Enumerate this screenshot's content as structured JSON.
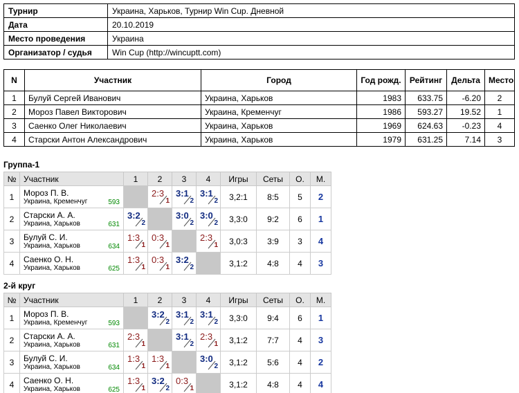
{
  "info": {
    "rows": [
      [
        "Турнир",
        "Украина, Харьков, Турнир Win Cup. Дневной"
      ],
      [
        "Дата",
        "20.10.2019"
      ],
      [
        "Место проведения",
        "Украина"
      ],
      [
        "Организатор / судья",
        "Win Cup (http://wincuptt.com)"
      ]
    ]
  },
  "participants": {
    "header": [
      "N",
      "Участник",
      "Город",
      "Год рожд.",
      "Рейтинг",
      "Дельта",
      "Место"
    ],
    "rows": [
      [
        "1",
        "Булуй Сергей Иванович",
        "Украина, Харьков",
        "1983",
        "633.75",
        "-6.20",
        "2"
      ],
      [
        "2",
        "Мороз Павел Викторович",
        "Украина, Кременчуг",
        "1986",
        "593.27",
        "19.52",
        "1"
      ],
      [
        "3",
        "Саенко Олег Николаевич",
        "Украина, Харьков",
        "1969",
        "624.63",
        "-0.23",
        "4"
      ],
      [
        "4",
        "Старски Антон Александрович",
        "Украина, Харьков",
        "1979",
        "631.25",
        "7.14",
        "3"
      ]
    ]
  },
  "groups": [
    {
      "title": "Группа-1",
      "header": [
        "№",
        "Участник",
        "1",
        "2",
        "3",
        "4",
        "Игры",
        "Сеты",
        "О.",
        "М."
      ],
      "rows": [
        {
          "n": "1",
          "name": "Мороз П. В.",
          "city": "Украина, Кременчуг",
          "rating": "593",
          "cells": [
            null,
            {
              "score": "2:3",
              "pts": "1"
            },
            {
              "score": "3:1",
              "pts": "2"
            },
            {
              "score": "3:1",
              "pts": "2"
            }
          ],
          "games": "3,2:1",
          "sets": "8:5",
          "points": "5",
          "place": "2"
        },
        {
          "n": "2",
          "name": "Старски А. А.",
          "city": "Украина, Харьков",
          "rating": "631",
          "cells": [
            {
              "score": "3:2",
              "pts": "2"
            },
            null,
            {
              "score": "3:0",
              "pts": "2"
            },
            {
              "score": "3:0",
              "pts": "2"
            }
          ],
          "games": "3,3:0",
          "sets": "9:2",
          "points": "6",
          "place": "1"
        },
        {
          "n": "3",
          "name": "Булуй С. И.",
          "city": "Украина, Харьков",
          "rating": "634",
          "cells": [
            {
              "score": "1:3",
              "pts": "1"
            },
            {
              "score": "0:3",
              "pts": "1"
            },
            null,
            {
              "score": "2:3",
              "pts": "1"
            }
          ],
          "games": "3,0:3",
          "sets": "3:9",
          "points": "3",
          "place": "4"
        },
        {
          "n": "4",
          "name": "Саенко О. Н.",
          "city": "Украина, Харьков",
          "rating": "625",
          "cells": [
            {
              "score": "1:3",
              "pts": "1"
            },
            {
              "score": "0:3",
              "pts": "1"
            },
            {
              "score": "3:2",
              "pts": "2"
            },
            null
          ],
          "games": "3,1:2",
          "sets": "4:8",
          "points": "4",
          "place": "3"
        }
      ]
    },
    {
      "title": "2-й круг",
      "header": [
        "№",
        "Участник",
        "1",
        "2",
        "3",
        "4",
        "Игры",
        "Сеты",
        "О.",
        "М."
      ],
      "rows": [
        {
          "n": "1",
          "name": "Мороз П. В.",
          "city": "Украина, Кременчуг",
          "rating": "593",
          "cells": [
            null,
            {
              "score": "3:2",
              "pts": "2"
            },
            {
              "score": "3:1",
              "pts": "2"
            },
            {
              "score": "3:1",
              "pts": "2"
            }
          ],
          "games": "3,3:0",
          "sets": "9:4",
          "points": "6",
          "place": "1"
        },
        {
          "n": "2",
          "name": "Старски А. А.",
          "city": "Украина, Харьков",
          "rating": "631",
          "cells": [
            {
              "score": "2:3",
              "pts": "1"
            },
            null,
            {
              "score": "3:1",
              "pts": "2"
            },
            {
              "score": "2:3",
              "pts": "1"
            }
          ],
          "games": "3,1:2",
          "sets": "7:7",
          "points": "4",
          "place": "3"
        },
        {
          "n": "3",
          "name": "Булуй С. И.",
          "city": "Украина, Харьков",
          "rating": "634",
          "cells": [
            {
              "score": "1:3",
              "pts": "1"
            },
            {
              "score": "1:3",
              "pts": "1"
            },
            null,
            {
              "score": "3:0",
              "pts": "2"
            }
          ],
          "games": "3,1:2",
          "sets": "5:6",
          "points": "4",
          "place": "2"
        },
        {
          "n": "4",
          "name": "Саенко О. Н.",
          "city": "Украина, Харьков",
          "rating": "625",
          "cells": [
            {
              "score": "1:3",
              "pts": "1"
            },
            {
              "score": "3:2",
              "pts": "2"
            },
            {
              "score": "0:3",
              "pts": "1"
            },
            null
          ],
          "games": "3,1:2",
          "sets": "4:8",
          "points": "4",
          "place": "4"
        }
      ]
    }
  ]
}
